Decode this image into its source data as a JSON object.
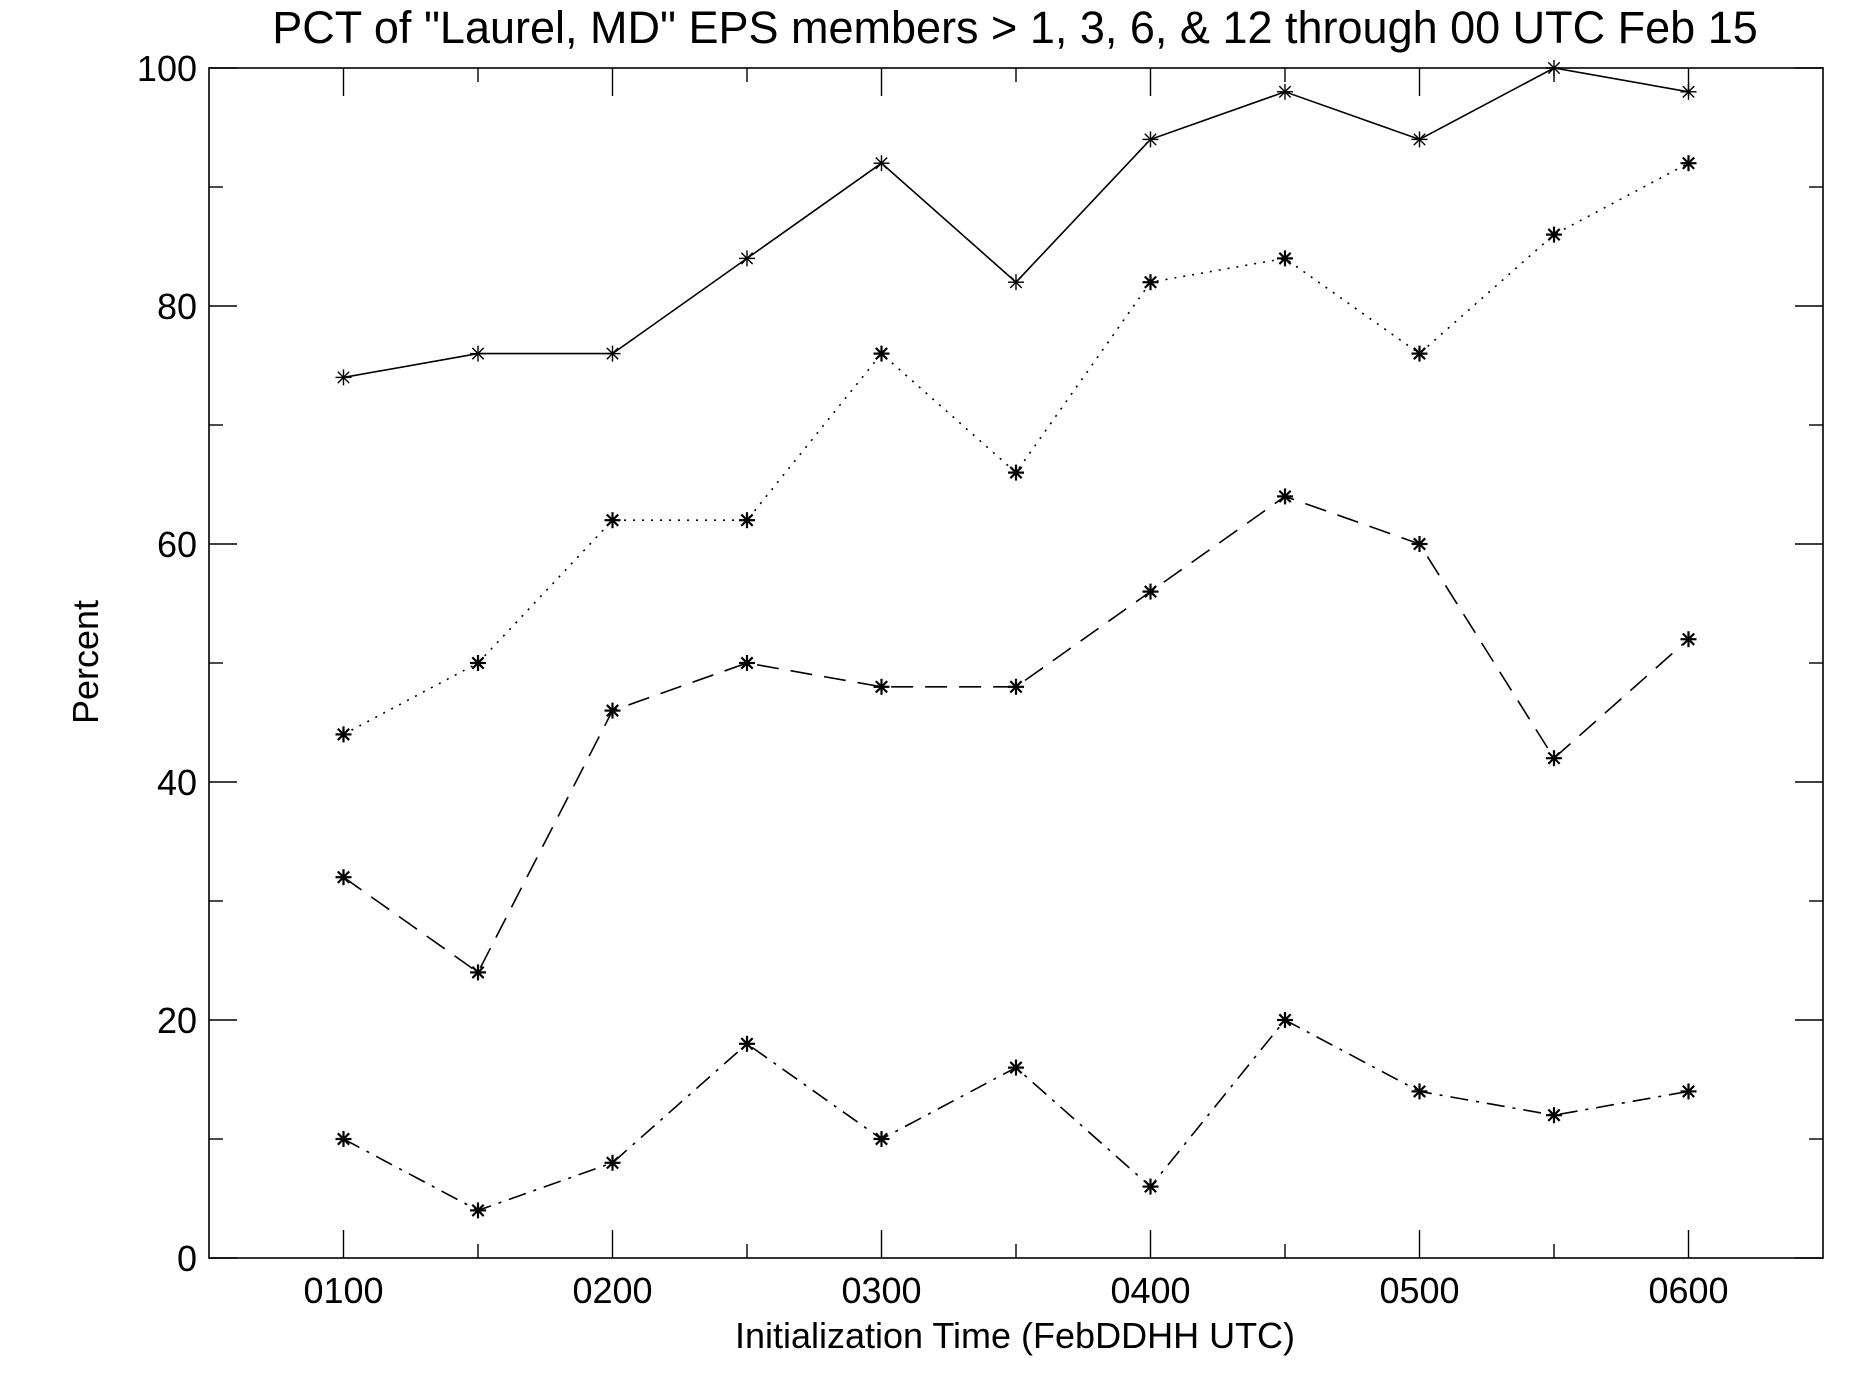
{
  "chart_data": {
    "type": "line",
    "title": "PCT of \"Laurel, MD\" EPS members > 1, 3, 6, & 12 through 00 UTC Feb 15",
    "xlabel": "Initialization Time (FebDDHH UTC)",
    "ylabel": "Percent",
    "ylim": [
      0,
      100
    ],
    "xlim": [
      0.5,
      6.5
    ],
    "x": [
      1,
      1.5,
      2,
      2.5,
      3,
      3.5,
      4,
      4.5,
      5,
      5.5,
      6
    ],
    "x_tick_labels": [
      "0100",
      "0200",
      "0300",
      "0400",
      "0500",
      "0600"
    ],
    "y_tick_labels": [
      "0",
      "20",
      "40",
      "60",
      "80",
      "100"
    ],
    "grid": false,
    "marker": "asterisk",
    "series": [
      {
        "line_style": "solid",
        "values": [
          74,
          76,
          76,
          84,
          92,
          82,
          94,
          98,
          94,
          100,
          98
        ]
      },
      {
        "line_style": "dotted",
        "values": [
          44,
          50,
          62,
          62,
          76,
          66,
          82,
          84,
          76,
          86,
          92
        ]
      },
      {
        "line_style": "dashed",
        "values": [
          32,
          24,
          46,
          50,
          48,
          48,
          56,
          64,
          60,
          42,
          52
        ]
      },
      {
        "line_style": "dash-dot",
        "values": [
          10,
          4,
          8,
          18,
          10,
          16,
          6,
          20,
          14,
          12,
          14
        ]
      }
    ],
    "colors": {
      "line": "#000000",
      "axis": "#000000",
      "background": "#ffffff"
    }
  }
}
